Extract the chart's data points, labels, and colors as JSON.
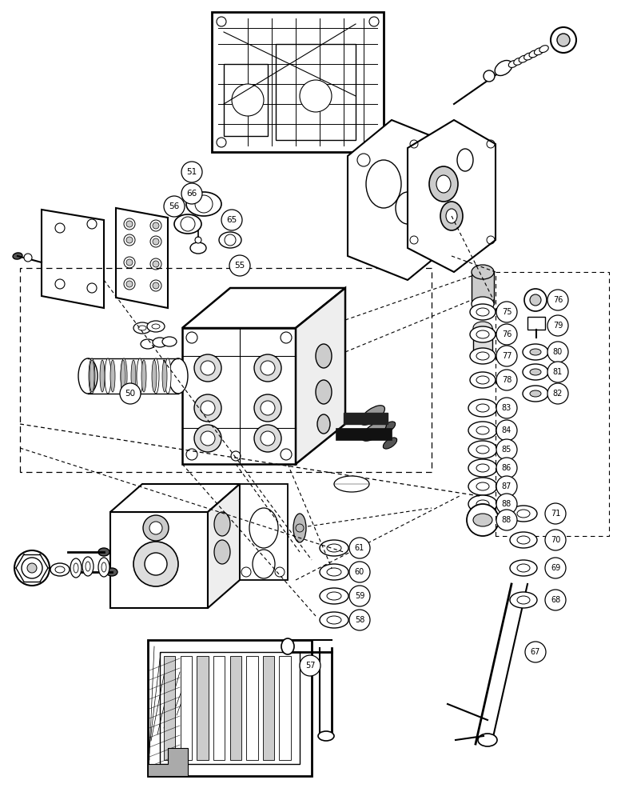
{
  "background_color": "#ffffff",
  "line_color": "#000000",
  "figsize": [
    7.72,
    10.0
  ],
  "dpi": 100
}
